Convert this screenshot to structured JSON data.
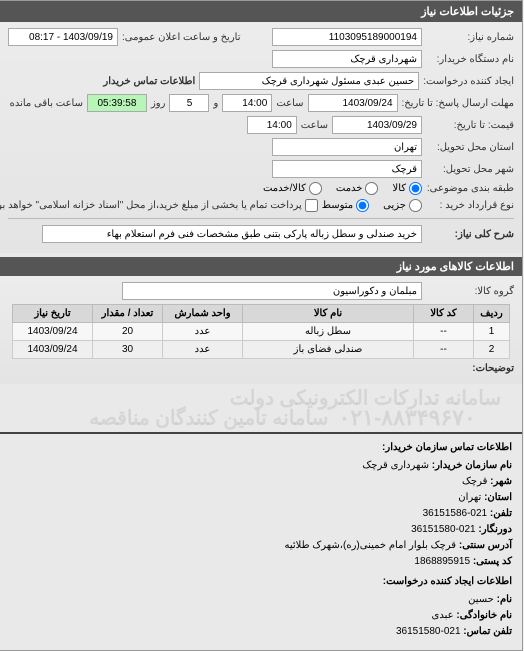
{
  "panel": {
    "title": "جزئیات اطلاعات نیاز"
  },
  "form": {
    "req_no_label": "شماره نیاز:",
    "req_no": "1103095189000194",
    "announce_label": "تاریخ و ساعت اعلان عمومی:",
    "announce_value": "1403/09/19 - 08:17",
    "buyer_org_label": "نام دستگاه خریدار:",
    "buyer_org": "شهرداری قرچک",
    "creator_label": "ایجاد کننده درخواست:",
    "creator": "حسین عبدی مسئول شهرداری قرچک",
    "buyer_contact_label": "اطلاعات تماس خریدار",
    "deadline_from_label": "مهلت ارسال پاسخ: تا تاریخ:",
    "deadline_date": "1403/09/24",
    "time_label": "ساعت",
    "deadline_time": "14:00",
    "and_label": "و",
    "days_value": "5",
    "days_label": "روز",
    "remaining_value": "05:39:58",
    "remaining_label": "ساعت باقی مانده",
    "validity_label": "قیمت: تا تاریخ:",
    "validity_date": "1403/09/29",
    "validity_time": "14:00",
    "province_label": "استان محل تحویل:",
    "province": "تهران",
    "city_label": "شهر محل تحویل:",
    "city": "قرچک",
    "category_label": "طبقه بندی موضوعی:",
    "radios": {
      "goods": "کالا",
      "service": "خدمت",
      "both": "کالا/خدمت"
    },
    "contract_type_label": "نوع قرارداد خرید :",
    "radios2": {
      "small": "جزیی",
      "medium": "متوسط"
    },
    "contract_note": "پرداخت تمام یا بخشی از مبلغ خرید،از محل \"اسناد خزانه اسلامی\" خواهد بود.",
    "desc_label": "شرح کلی نیاز:",
    "desc": "خرید صندلی و سطل زباله پارکی بتنی طبق مشخصات فنی فرم استعلام بهاء"
  },
  "items_section": {
    "title": "اطلاعات کالاهای مورد نیاز",
    "group_label": "گروه کالا:",
    "group": "مبلمان و دکوراسیون",
    "columns": [
      "ردیف",
      "کد کالا",
      "نام کالا",
      "واحد شمارش",
      "تعداد / مقدار",
      "تاریخ نیاز"
    ],
    "rows": [
      [
        "1",
        "--",
        "سطل زباله",
        "عدد",
        "20",
        "1403/09/24"
      ],
      [
        "2",
        "--",
        "صندلی فضای باز",
        "عدد",
        "30",
        "1403/09/24"
      ]
    ],
    "notes_label": "توضیحات:"
  },
  "contact": {
    "title": "اطلاعات تماس سازمان خریدار:",
    "org_name_label": "نام سازمان خریدار:",
    "org_name": "شهرداری قرچک",
    "city_label": "شهر:",
    "city": "قرچک",
    "province_label": "استان:",
    "province": "تهران",
    "phone_label": "تلفن:",
    "phone": "021-36151586",
    "fax_label": "دورنگار:",
    "fax": "021-36151580",
    "address_label": "آدرس سنتی:",
    "address": "قرچک بلوار امام خمینی(ره)،شهرک طلائیه",
    "postal_label": "کد پستی:",
    "postal": "1868895915",
    "creator_title": "اطلاعات ایجاد کننده درخواست:",
    "firstname_label": "نام:",
    "firstname": "حسین",
    "lastname_label": "نام خانوادگی:",
    "lastname": "عبدی",
    "contact_phone_label": "تلفن تماس:",
    "contact_phone": "021-36151580"
  },
  "watermark": {
    "line1": "سامانه تدارکات الکترونیکی دولت",
    "line2": "سامانه تامین کنندگان مناقصه",
    "phone": "۰۲۱-۸۸۳۴۹۶۷۰"
  }
}
